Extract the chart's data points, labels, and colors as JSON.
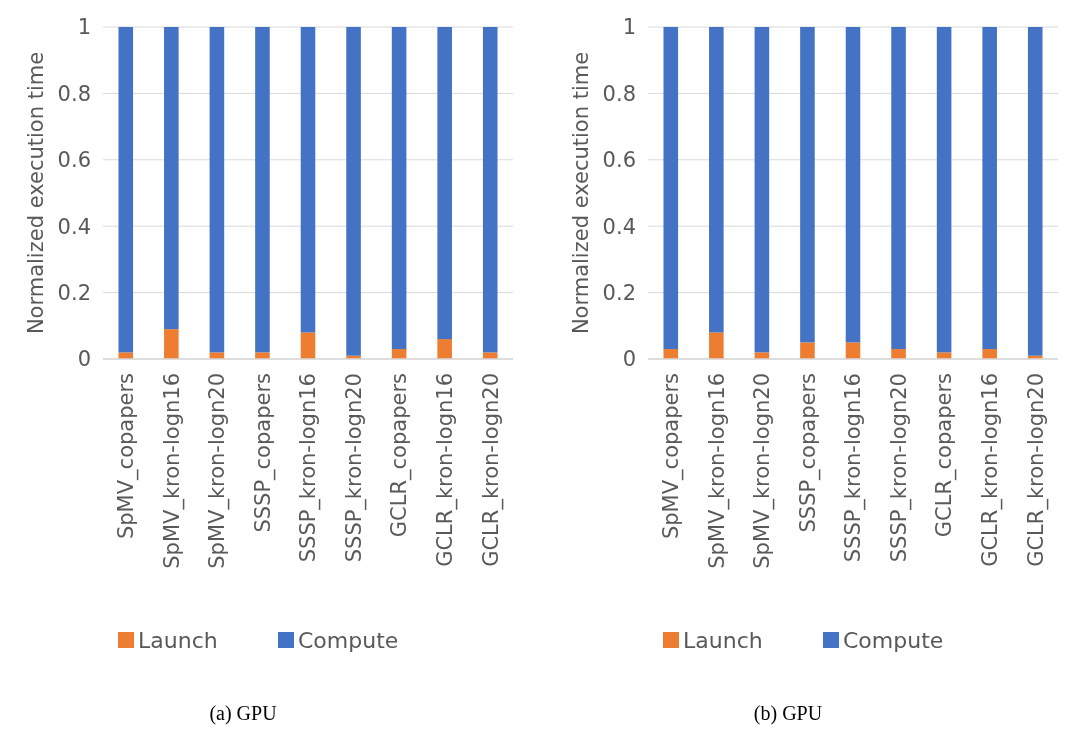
{
  "chart_data": [
    {
      "type": "bar",
      "stacked": true,
      "title": "(a) GPU",
      "ylabel": "Normalized execution time",
      "categories": [
        "SpMV_copapers",
        "SpMV_kron-logn16",
        "SpMV_kron-logn20",
        "SSSP_copapers",
        "SSSP_kron-logn16",
        "SSSP_kron-logn20",
        "GCLR_copapers",
        "GCLR_kron-logn16",
        "GCLR_kron-logn20"
      ],
      "series": [
        {
          "name": "Launch",
          "color": "#ed7d31",
          "values": [
            0.02,
            0.09,
            0.02,
            0.02,
            0.08,
            0.01,
            0.03,
            0.06,
            0.02
          ]
        },
        {
          "name": "Compute",
          "color": "#4472c4",
          "values": [
            0.98,
            0.91,
            0.98,
            0.98,
            0.92,
            0.99,
            0.97,
            0.94,
            0.98
          ]
        }
      ],
      "ylim": [
        0,
        1
      ],
      "yticks": [
        0,
        0.2,
        0.4,
        0.6,
        0.8,
        1
      ],
      "grid": "y",
      "legend": "bottom"
    },
    {
      "type": "bar",
      "stacked": true,
      "title": "(b) GPU",
      "ylabel": "Normalized execution time",
      "categories": [
        "SpMV_copapers",
        "SpMV_kron-logn16",
        "SpMV_kron-logn20",
        "SSSP_copapers",
        "SSSP_kron-logn16",
        "SSSP_kron-logn20",
        "GCLR_copapers",
        "GCLR_kron-logn16",
        "GCLR_kron-logn20"
      ],
      "series": [
        {
          "name": "Launch",
          "color": "#ed7d31",
          "values": [
            0.03,
            0.08,
            0.02,
            0.05,
            0.05,
            0.03,
            0.02,
            0.03,
            0.01
          ]
        },
        {
          "name": "Compute",
          "color": "#4472c4",
          "values": [
            0.97,
            0.92,
            0.98,
            0.95,
            0.95,
            0.97,
            0.98,
            0.97,
            0.99
          ]
        }
      ],
      "ylim": [
        0,
        1
      ],
      "yticks": [
        0,
        0.2,
        0.4,
        0.6,
        0.8,
        1
      ],
      "grid": "y",
      "legend": "bottom"
    }
  ]
}
